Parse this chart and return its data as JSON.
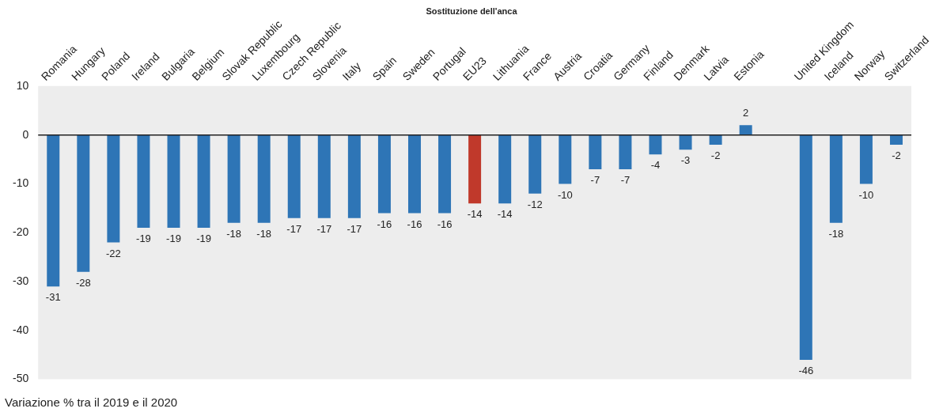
{
  "chart_data": {
    "type": "bar",
    "title": "Sostituzione dell'anca",
    "categories": [
      "Romania",
      "Hungary",
      "Poland",
      "Ireland",
      "Bulgaria",
      "Belgium",
      "Slovak Republic",
      "Luxembourg",
      "Czech Republic",
      "Slovenia",
      "Italy",
      "Spain",
      "Sweden",
      "Portugal",
      "EU23",
      "Lithuania",
      "France",
      "Austria",
      "Croatia",
      "Germany",
      "Finland",
      "Denmark",
      "Latvia",
      "Estonia",
      null,
      "United Kingdom",
      "Iceland",
      "Norway",
      "Switzerland"
    ],
    "values": [
      -31,
      -28,
      -22,
      -19,
      -19,
      -19,
      -18,
      -18,
      -17,
      -17,
      -17,
      -16,
      -16,
      -16,
      -14,
      -14,
      -12,
      -10,
      -7,
      -7,
      -4,
      -3,
      -2,
      2,
      null,
      -46,
      -18,
      -10,
      -2
    ],
    "colors": [
      "#2e75b6",
      "#2e75b6",
      "#2e75b6",
      "#2e75b6",
      "#2e75b6",
      "#2e75b6",
      "#2e75b6",
      "#2e75b6",
      "#2e75b6",
      "#2e75b6",
      "#2e75b6",
      "#2e75b6",
      "#2e75b6",
      "#2e75b6",
      "#c0392b",
      "#2e75b6",
      "#2e75b6",
      "#2e75b6",
      "#2e75b6",
      "#2e75b6",
      "#2e75b6",
      "#2e75b6",
      "#2e75b6",
      "#2e75b6",
      "#2e75b6",
      "#2e75b6",
      "#2e75b6",
      "#2e75b6",
      "#2e75b6"
    ],
    "ylim": [
      -50,
      10
    ],
    "yticks": [
      -50,
      -40,
      -30,
      -20,
      -10,
      0,
      10
    ],
    "ref_lines": [
      {
        "axis": "y",
        "value": 0,
        "color": "#222222"
      }
    ],
    "data_labels": true,
    "legend": false,
    "grid": false,
    "annotations": [
      "Variazione % tra il 2019 e il 2020"
    ]
  }
}
